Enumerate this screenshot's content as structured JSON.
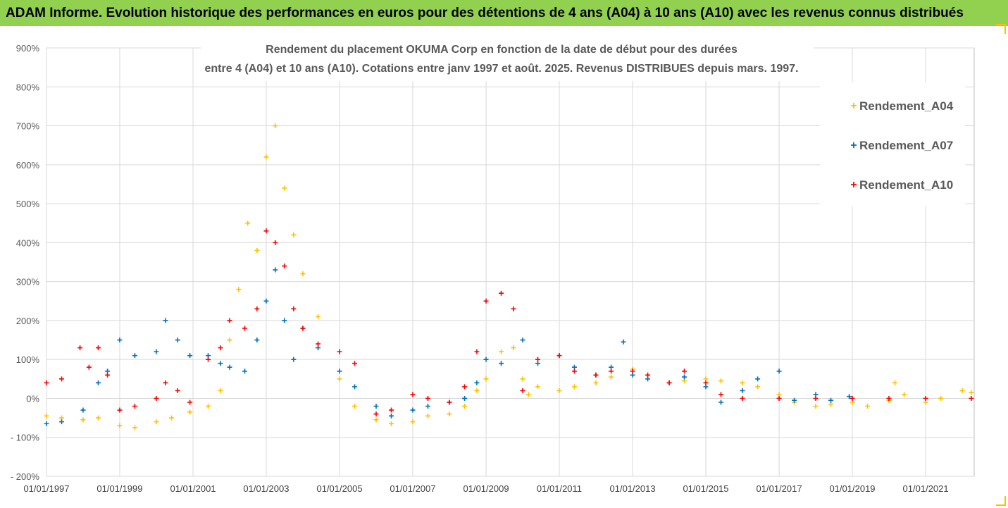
{
  "header": {
    "banner": "ADAM Informe. Evolution historique des performances en euros pour des détentions de 4 ans (A04) à 10 ans (A10) avec les revenus connus distribués"
  },
  "colors": {
    "banner_bg": "#92d050",
    "grid": "#d9d9d9",
    "A04": "#ffc000",
    "A07": "#0070c0",
    "A10": "#ff0000"
  },
  "chart_data": {
    "type": "scatter",
    "title_line1": "Rendement du placement OKUMA Corp en fonction de la date de début pour des durées",
    "title_line2": "entre 4 (A04) et 10 ans (A10). Cotations entre janv 1997 et août. 2025. Revenus DISTRIBUES depuis mars. 1997.",
    "xlabel": "",
    "ylabel": "",
    "x_range": [
      "1997-01-01",
      "2022-04-30"
    ],
    "ylim": [
      -200,
      900
    ],
    "y_ticks": [
      -200,
      -100,
      0,
      100,
      200,
      300,
      400,
      500,
      600,
      700,
      800,
      900
    ],
    "y_tick_labels": [
      "- 200%",
      "- 100%",
      "0%",
      "100%",
      "200%",
      "300%",
      "400%",
      "500%",
      "600%",
      "700%",
      "800%",
      "900%"
    ],
    "x_ticks": [
      "1997-01-01",
      "1999-01-01",
      "2001-01-01",
      "2003-01-01",
      "2005-01-01",
      "2007-01-01",
      "2009-01-01",
      "2011-01-01",
      "2013-01-01",
      "2015-01-01",
      "2017-01-01",
      "2019-01-01",
      "2021-01-01"
    ],
    "x_tick_labels": [
      "01/01/1997",
      "01/01/1999",
      "01/01/2001",
      "01/01/2003",
      "01/01/2005",
      "01/01/2007",
      "01/01/2009",
      "01/01/2011",
      "01/01/2013",
      "01/01/2015",
      "01/01/2017",
      "01/01/2019",
      "01/01/2021"
    ],
    "grid": true,
    "legend_position": "top-right",
    "series": [
      {
        "name": "Rendement_A04",
        "color": "#ffc000",
        "x": [
          "1997-01-01",
          "1997-06-01",
          "1998-01-01",
          "1998-06-01",
          "1999-01-01",
          "1999-06-01",
          "2000-01-01",
          "2000-06-01",
          "2000-12-01",
          "2001-06-01",
          "2001-10-01",
          "2002-01-01",
          "2002-04-01",
          "2002-07-01",
          "2002-10-01",
          "2003-01-01",
          "2003-04-01",
          "2003-07-01",
          "2003-10-01",
          "2004-01-01",
          "2004-06-01",
          "2005-01-01",
          "2005-06-01",
          "2006-01-01",
          "2006-06-01",
          "2007-01-01",
          "2007-06-01",
          "2008-01-01",
          "2008-06-01",
          "2008-10-01",
          "2009-01-01",
          "2009-06-01",
          "2009-10-01",
          "2010-01-01",
          "2010-03-01",
          "2010-06-01",
          "2011-01-01",
          "2011-06-01",
          "2012-01-01",
          "2012-06-01",
          "2013-01-01",
          "2013-06-01",
          "2014-01-01",
          "2014-06-01",
          "2015-01-01",
          "2015-06-01",
          "2016-01-01",
          "2016-06-01",
          "2017-01-01",
          "2017-06-01",
          "2018-01-01",
          "2018-06-01",
          "2019-01-01",
          "2019-06-01",
          "2020-01-01",
          "2020-03-01",
          "2020-06-01",
          "2021-01-01",
          "2021-06-01",
          "2022-01-01",
          "2022-04-01"
        ],
        "y": [
          -45,
          -50,
          -55,
          -50,
          -70,
          -75,
          -60,
          -50,
          -35,
          -20,
          20,
          150,
          280,
          450,
          380,
          620,
          700,
          540,
          420,
          320,
          210,
          50,
          -20,
          -55,
          -65,
          -60,
          -45,
          -40,
          -20,
          20,
          50,
          120,
          130,
          50,
          10,
          30,
          20,
          30,
          40,
          55,
          75,
          60,
          40,
          45,
          50,
          45,
          40,
          30,
          10,
          -10,
          -20,
          -15,
          -10,
          -20,
          -5,
          40,
          10,
          -10,
          0,
          20,
          15
        ]
      },
      {
        "name": "Rendement_A07",
        "color": "#0070c0",
        "x": [
          "1997-01-01",
          "1997-06-01",
          "1998-01-01",
          "1998-06-01",
          "1998-09-01",
          "1999-01-01",
          "1999-06-01",
          "2000-01-01",
          "2000-04-01",
          "2000-08-01",
          "2000-12-01",
          "2001-06-01",
          "2001-10-01",
          "2002-01-01",
          "2002-06-01",
          "2002-10-01",
          "2003-01-01",
          "2003-04-01",
          "2003-07-01",
          "2003-10-01",
          "2004-01-01",
          "2004-06-01",
          "2005-01-01",
          "2005-06-01",
          "2006-01-01",
          "2006-06-01",
          "2007-01-01",
          "2007-06-01",
          "2008-01-01",
          "2008-06-01",
          "2008-10-01",
          "2009-01-01",
          "2009-06-01",
          "2010-01-01",
          "2010-06-01",
          "2011-01-01",
          "2011-06-01",
          "2012-01-01",
          "2012-06-01",
          "2012-10-01",
          "2013-01-01",
          "2013-06-01",
          "2014-01-01",
          "2014-06-01",
          "2015-01-01",
          "2015-06-01",
          "2016-01-01",
          "2016-06-01",
          "2017-01-01",
          "2017-06-01",
          "2018-01-01",
          "2018-06-01",
          "2018-12-01"
        ],
        "y": [
          -65,
          -60,
          -30,
          40,
          70,
          150,
          110,
          120,
          200,
          150,
          110,
          110,
          90,
          80,
          70,
          150,
          250,
          330,
          200,
          100,
          180,
          130,
          70,
          30,
          -20,
          -45,
          -30,
          -20,
          -10,
          0,
          40,
          100,
          90,
          150,
          90,
          110,
          80,
          60,
          80,
          145,
          60,
          50,
          40,
          55,
          30,
          -10,
          20,
          50,
          70,
          -5,
          10,
          -5,
          5
        ]
      },
      {
        "name": "Rendement_A10",
        "color": "#ff0000",
        "x": [
          "1997-01-01",
          "1997-06-01",
          "1997-12-01",
          "1998-03-01",
          "1998-06-01",
          "1998-09-01",
          "1999-01-01",
          "1999-06-01",
          "2000-01-01",
          "2000-04-01",
          "2000-08-01",
          "2000-12-01",
          "2001-06-01",
          "2001-10-01",
          "2002-01-01",
          "2002-06-01",
          "2002-10-01",
          "2003-01-01",
          "2003-04-01",
          "2003-07-01",
          "2003-10-01",
          "2004-01-01",
          "2004-06-01",
          "2005-01-01",
          "2005-06-01",
          "2006-01-01",
          "2006-06-01",
          "2007-01-01",
          "2007-06-01",
          "2008-01-01",
          "2008-06-01",
          "2008-10-01",
          "2009-01-01",
          "2009-06-01",
          "2009-10-01",
          "2010-01-01",
          "2010-06-01",
          "2011-01-01",
          "2011-06-01",
          "2012-01-01",
          "2012-06-01",
          "2013-01-01",
          "2013-06-01",
          "2014-01-01",
          "2014-06-01",
          "2015-01-01",
          "2015-06-01",
          "2016-01-01",
          "2017-01-01",
          "2018-01-01",
          "2019-01-01",
          "2020-01-01",
          "2021-01-01",
          "2022-04-01"
        ],
        "y": [
          40,
          50,
          130,
          80,
          130,
          60,
          -30,
          -20,
          0,
          40,
          20,
          -10,
          100,
          130,
          200,
          180,
          230,
          430,
          400,
          340,
          230,
          180,
          140,
          120,
          90,
          -40,
          -30,
          10,
          0,
          -10,
          30,
          120,
          250,
          270,
          230,
          20,
          100,
          110,
          70,
          60,
          70,
          70,
          60,
          40,
          70,
          40,
          10,
          0,
          0,
          0,
          0,
          0,
          0,
          0
        ]
      }
    ]
  }
}
